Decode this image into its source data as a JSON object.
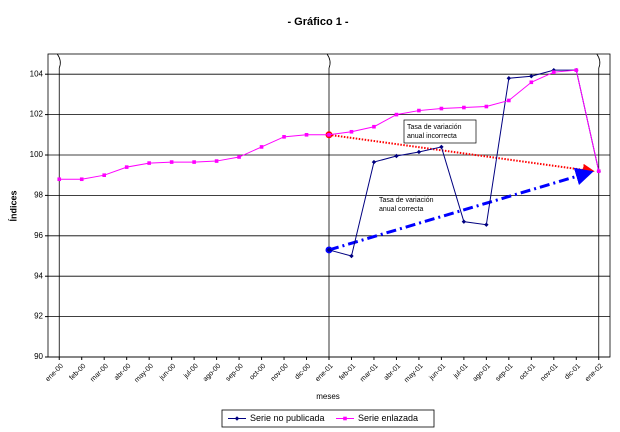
{
  "chart_data": {
    "type": "line",
    "title": "- Gráfico 1 -",
    "x_label": "meses",
    "y_label": "Índices",
    "categories": [
      "ene-00",
      "feb-00",
      "mar-00",
      "abr-00",
      "may-00",
      "jun-00",
      "jul-00",
      "ago-00",
      "sep-00",
      "oct-00",
      "nov-00",
      "dic-00",
      "ene-01",
      "feb-01",
      "mar-01",
      "abr-01",
      "may-01",
      "jun-01",
      "jul-01",
      "ago-01",
      "sep-01",
      "oct-01",
      "nov-01",
      "dic-01",
      "ene-02"
    ],
    "series": [
      {
        "name": "Serie no publicada",
        "color": "#000080",
        "values": [
          null,
          null,
          null,
          null,
          null,
          null,
          null,
          null,
          null,
          null,
          null,
          null,
          95.3,
          95.0,
          99.65,
          99.95,
          100.15,
          100.4,
          96.7,
          96.55,
          103.8,
          103.9,
          104.2,
          104.2,
          99.2
        ]
      },
      {
        "name": "Serie enlazada",
        "color": "#ff00ff",
        "values": [
          98.8,
          98.8,
          99.0,
          99.4,
          99.6,
          99.65,
          99.65,
          99.7,
          99.9,
          100.4,
          100.9,
          101.0,
          101.0,
          101.15,
          101.4,
          102.0,
          102.2,
          102.3,
          102.35,
          102.4,
          102.7,
          103.6,
          104.1,
          104.2,
          99.2
        ]
      }
    ],
    "annotations": [
      "Tasa de variación anual incorrecta",
      "Tasa de variación anual correcta"
    ],
    "ylim": [
      90,
      105
    ],
    "yticks": [
      90,
      92,
      94,
      96,
      98,
      100,
      102,
      104
    ],
    "grid": true,
    "legend": "bottom"
  }
}
